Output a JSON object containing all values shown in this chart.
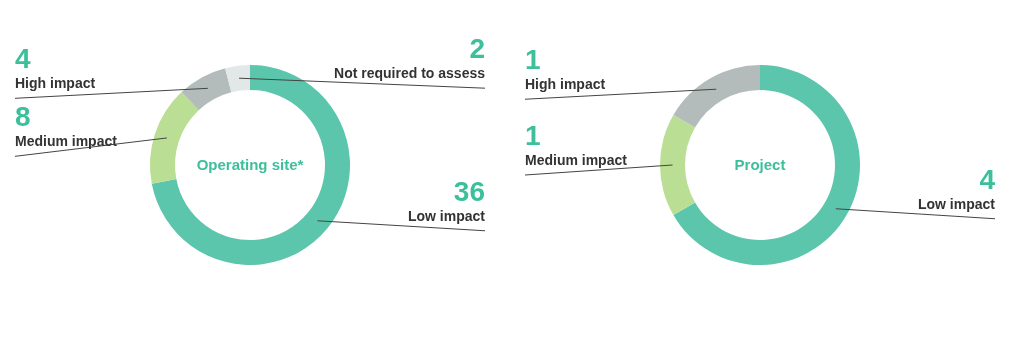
{
  "chart_data": [
    {
      "type": "donut",
      "title": "Operating site*",
      "categories": [
        "Low impact",
        "Medium impact",
        "High impact",
        "Not required to assess"
      ],
      "values": [
        36,
        8,
        4,
        2
      ],
      "colors": [
        "#5cc6ad",
        "#b9de94",
        "#b4bcbb",
        "#e2e8e7"
      ],
      "data_labels": true
    },
    {
      "type": "donut",
      "title": "Project",
      "categories": [
        "Low impact",
        "Medium impact",
        "High impact"
      ],
      "values": [
        4,
        1,
        1
      ],
      "colors": [
        "#5cc6ad",
        "#b9de94",
        "#b4bcbb"
      ],
      "data_labels": true
    }
  ]
}
